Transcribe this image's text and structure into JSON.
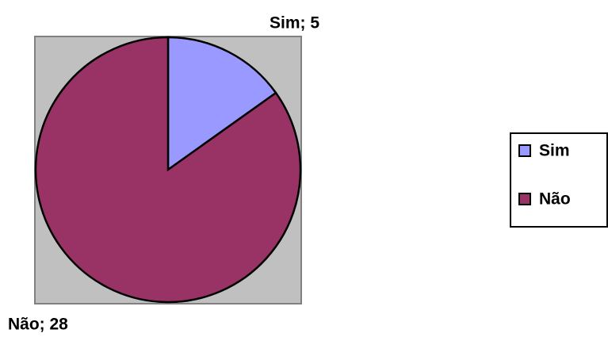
{
  "chart_data": {
    "type": "pie",
    "categories": [
      "Sim",
      "Não"
    ],
    "values": [
      5,
      28
    ],
    "value_labels": [
      "Sim; 5",
      "Não; 28"
    ],
    "colors": [
      "#9999ff",
      "#993366"
    ],
    "legend": "right"
  }
}
